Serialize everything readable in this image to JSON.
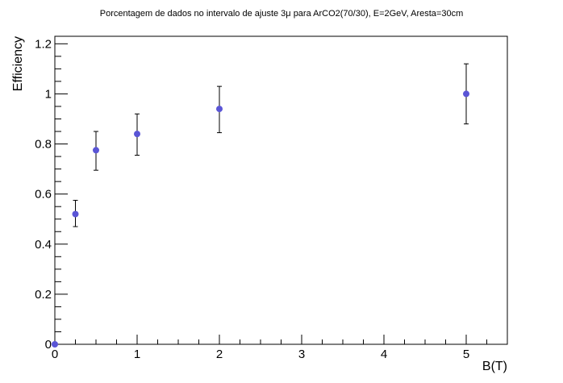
{
  "chart_data": {
    "type": "scatter",
    "title": "Porcentagem de dados no intervalo de ajuste 3μ  para ArCO2(70/30), E=2GeV, Aresta=30cm",
    "xlabel": "B(T)",
    "ylabel": "Efficiency",
    "xlim": [
      0,
      5.5
    ],
    "ylim": [
      0,
      1.23
    ],
    "x_ticks": [
      0,
      1,
      2,
      3,
      4,
      5
    ],
    "y_ticks": [
      0,
      0.2,
      0.4,
      0.6,
      0.8,
      1,
      1.2
    ],
    "x_tick_labels": [
      "0",
      "1",
      "2",
      "3",
      "4",
      "5"
    ],
    "y_tick_labels": [
      "0",
      "0.2",
      "0.4",
      "0.6",
      "0.8",
      "1",
      "1.2"
    ],
    "grid": false,
    "series": [
      {
        "color": "#5a55d6",
        "x": [
          0,
          0.25,
          0.5,
          1,
          2,
          5
        ],
        "y": [
          0,
          0.52,
          0.775,
          0.84,
          0.94,
          1.0
        ],
        "err_low": [
          0,
          0.05,
          0.08,
          0.085,
          0.095,
          0.12
        ],
        "err_high": [
          0,
          0.055,
          0.075,
          0.08,
          0.09,
          0.12
        ]
      }
    ]
  }
}
